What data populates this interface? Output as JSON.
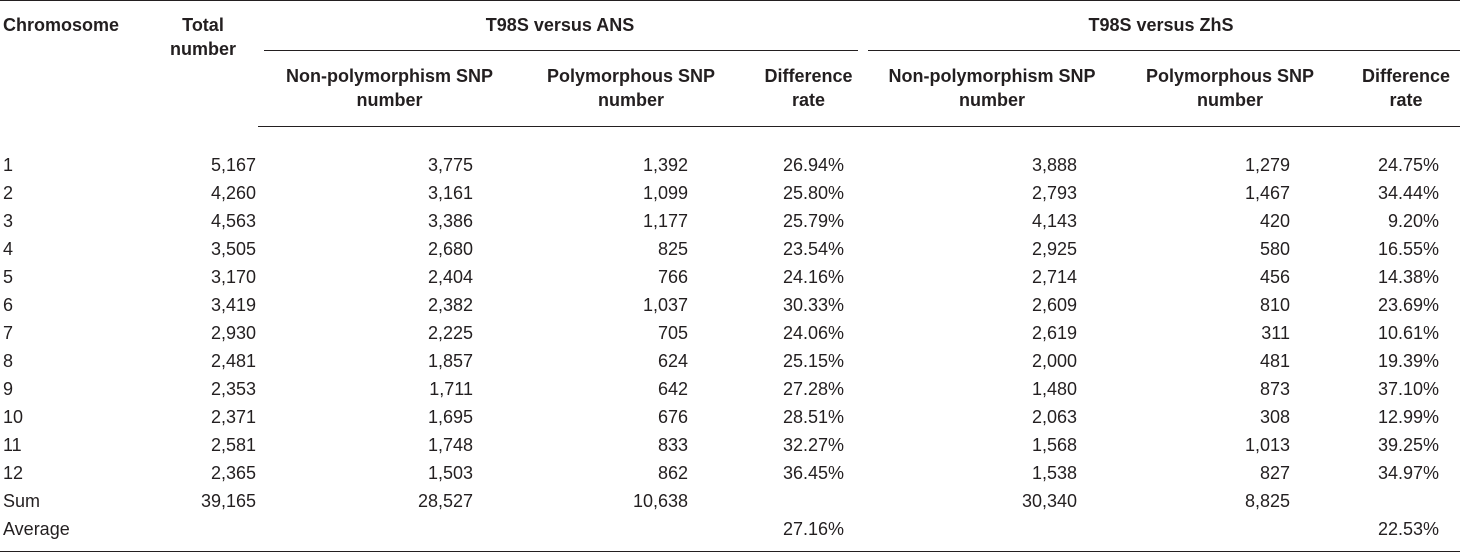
{
  "headers": {
    "chromosome": "Chromosome",
    "total_number": "Total number",
    "group_ans": "T98S versus ANS",
    "group_zhs": "T98S versus ZhS",
    "non_poly": "Non-polymorphism SNP number",
    "poly": "Polymorphous SNP number",
    "diff_rate": "Difference rate"
  },
  "rows": [
    {
      "chr": "1",
      "total": "5,167",
      "ans_non": "3,775",
      "ans_poly": "1,392",
      "ans_rate": "26.94%",
      "zhs_non": "3,888",
      "zhs_poly": "1,279",
      "zhs_rate": "24.75%"
    },
    {
      "chr": "2",
      "total": "4,260",
      "ans_non": "3,161",
      "ans_poly": "1,099",
      "ans_rate": "25.80%",
      "zhs_non": "2,793",
      "zhs_poly": "1,467",
      "zhs_rate": "34.44%"
    },
    {
      "chr": "3",
      "total": "4,563",
      "ans_non": "3,386",
      "ans_poly": "1,177",
      "ans_rate": "25.79%",
      "zhs_non": "4,143",
      "zhs_poly": "420",
      "zhs_rate": "9.20%"
    },
    {
      "chr": "4",
      "total": "3,505",
      "ans_non": "2,680",
      "ans_poly": "825",
      "ans_rate": "23.54%",
      "zhs_non": "2,925",
      "zhs_poly": "580",
      "zhs_rate": "16.55%"
    },
    {
      "chr": "5",
      "total": "3,170",
      "ans_non": "2,404",
      "ans_poly": "766",
      "ans_rate": "24.16%",
      "zhs_non": "2,714",
      "zhs_poly": "456",
      "zhs_rate": "14.38%"
    },
    {
      "chr": "6",
      "total": "3,419",
      "ans_non": "2,382",
      "ans_poly": "1,037",
      "ans_rate": "30.33%",
      "zhs_non": "2,609",
      "zhs_poly": "810",
      "zhs_rate": "23.69%"
    },
    {
      "chr": "7",
      "total": "2,930",
      "ans_non": "2,225",
      "ans_poly": "705",
      "ans_rate": "24.06%",
      "zhs_non": "2,619",
      "zhs_poly": "311",
      "zhs_rate": "10.61%"
    },
    {
      "chr": "8",
      "total": "2,481",
      "ans_non": "1,857",
      "ans_poly": "624",
      "ans_rate": "25.15%",
      "zhs_non": "2,000",
      "zhs_poly": "481",
      "zhs_rate": "19.39%"
    },
    {
      "chr": "9",
      "total": "2,353",
      "ans_non": "1,711",
      "ans_poly": "642",
      "ans_rate": "27.28%",
      "zhs_non": "1,480",
      "zhs_poly": "873",
      "zhs_rate": "37.10%"
    },
    {
      "chr": "10",
      "total": "2,371",
      "ans_non": "1,695",
      "ans_poly": "676",
      "ans_rate": "28.51%",
      "zhs_non": "2,063",
      "zhs_poly": "308",
      "zhs_rate": "12.99%"
    },
    {
      "chr": "11",
      "total": "2,581",
      "ans_non": "1,748",
      "ans_poly": "833",
      "ans_rate": "32.27%",
      "zhs_non": "1,568",
      "zhs_poly": "1,013",
      "zhs_rate": "39.25%"
    },
    {
      "chr": "12",
      "total": "2,365",
      "ans_non": "1,503",
      "ans_poly": "862",
      "ans_rate": "36.45%",
      "zhs_non": "1,538",
      "zhs_poly": "827",
      "zhs_rate": "34.97%"
    }
  ],
  "sum_row": {
    "label": "Sum",
    "total": "39,165",
    "ans_non": "28,527",
    "ans_poly": "10,638",
    "ans_rate": "",
    "zhs_non": "30,340",
    "zhs_poly": "8,825",
    "zhs_rate": ""
  },
  "average_row": {
    "label": "Average",
    "total": "",
    "ans_non": "",
    "ans_poly": "",
    "ans_rate": "27.16%",
    "zhs_non": "",
    "zhs_poly": "",
    "zhs_rate": "22.53%"
  }
}
